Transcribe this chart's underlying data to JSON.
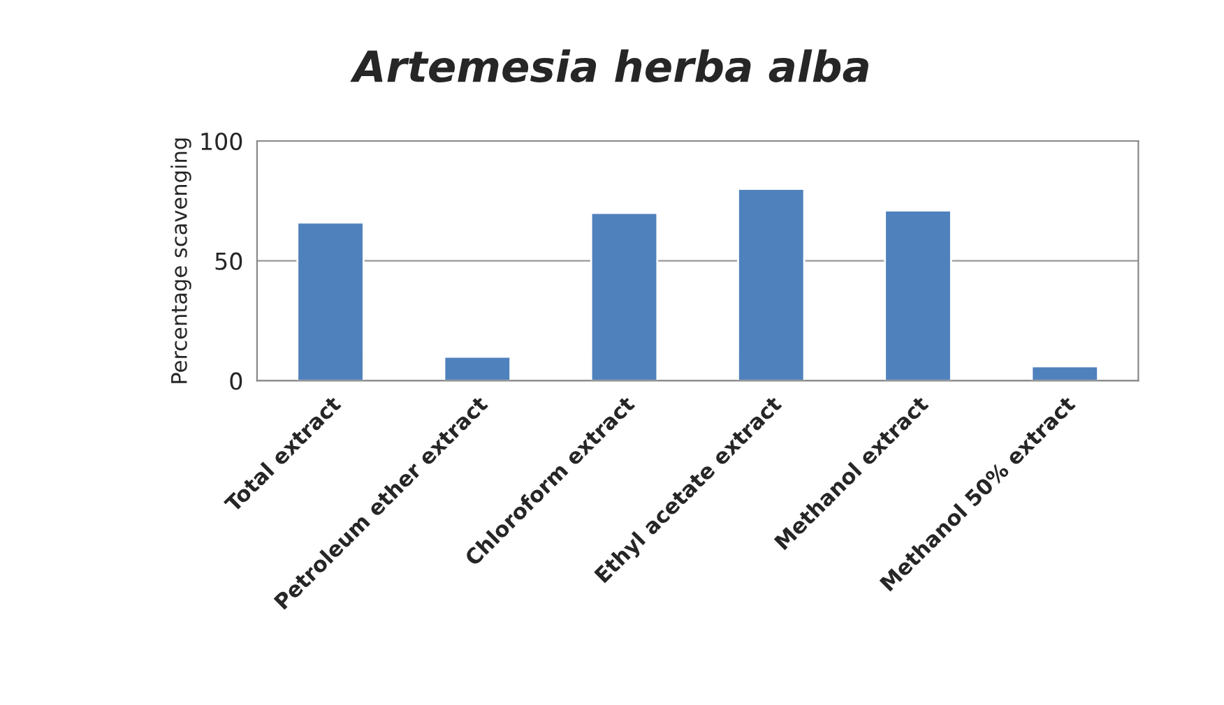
{
  "chart_data": {
    "type": "bar",
    "title": "Artemesia herba alba",
    "ylabel": "Percentage scavenging",
    "categories": [
      "Total extract",
      "Petroleum ether extract",
      "Chloroform extract",
      "Ethyl acetate extract",
      "Methanol extract",
      "Methanol 50% extract"
    ],
    "values": [
      66,
      10,
      70,
      80,
      71,
      6
    ],
    "color": "#4f81bd",
    "ylim": [
      0,
      100
    ],
    "yticks": [
      0,
      50,
      100
    ],
    "grid": "y",
    "legend": false
  }
}
